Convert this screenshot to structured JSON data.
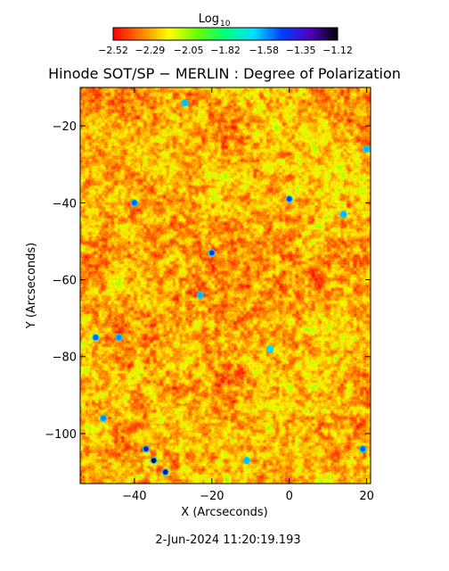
{
  "colorbar": {
    "label_main": "Log",
    "label_sub": "10",
    "ticks": [
      -2.52,
      -2.29,
      -2.05,
      -1.82,
      -1.58,
      -1.35,
      -1.12
    ],
    "tick_labels": [
      "−2.52",
      "−2.29",
      "−2.05",
      "−1.82",
      "−1.58",
      "−1.35",
      "−1.12"
    ],
    "range": [
      -2.52,
      -1.12
    ],
    "stops": [
      "#ff0000",
      "#ff8000",
      "#ffff00",
      "#66ff00",
      "#00ff80",
      "#00e0ff",
      "#0040ff",
      "#5000c0",
      "#000000"
    ]
  },
  "chart_data": {
    "type": "heatmap",
    "title": "Hinode SOT/SP − MERLIN : Degree of Polarization",
    "xlabel": "X (Arcseconds)",
    "ylabel": "Y (Arcseconds)",
    "xlim": [
      -54,
      21
    ],
    "ylim": [
      -113,
      -10
    ],
    "x_ticks": [
      -40,
      -20,
      0,
      20
    ],
    "x_tick_labels": [
      "−40",
      "−20",
      "0",
      "20"
    ],
    "y_ticks": [
      -20,
      -40,
      -60,
      -80,
      -100
    ],
    "y_tick_labels": [
      "−20",
      "−40",
      "−60",
      "−80",
      "−100"
    ],
    "value_range": [
      -2.52,
      -1.12
    ],
    "features": [
      {
        "x": -35,
        "y": -107,
        "value": -1.2
      },
      {
        "x": -37,
        "y": -104,
        "value": -1.3
      },
      {
        "x": -32,
        "y": -110,
        "value": -1.25
      },
      {
        "x": -20,
        "y": -53,
        "value": -1.4
      },
      {
        "x": -40,
        "y": -40,
        "value": -1.5
      },
      {
        "x": 0,
        "y": -39,
        "value": -1.45
      },
      {
        "x": 14,
        "y": -43,
        "value": -1.6
      },
      {
        "x": -50,
        "y": -75,
        "value": -1.5
      },
      {
        "x": -44,
        "y": -75,
        "value": -1.55
      },
      {
        "x": -27,
        "y": -14,
        "value": -1.6
      },
      {
        "x": 20,
        "y": -26,
        "value": -1.6
      },
      {
        "x": -23,
        "y": -64,
        "value": -1.6
      },
      {
        "x": -48,
        "y": -96,
        "value": -1.55
      },
      {
        "x": 19,
        "y": -104,
        "value": -1.5
      },
      {
        "x": -11,
        "y": -107,
        "value": -1.6
      },
      {
        "x": -5,
        "y": -78,
        "value": -1.65
      }
    ]
  },
  "footer": {
    "timestamp": "2-Jun-2024 11:20:19.193"
  }
}
